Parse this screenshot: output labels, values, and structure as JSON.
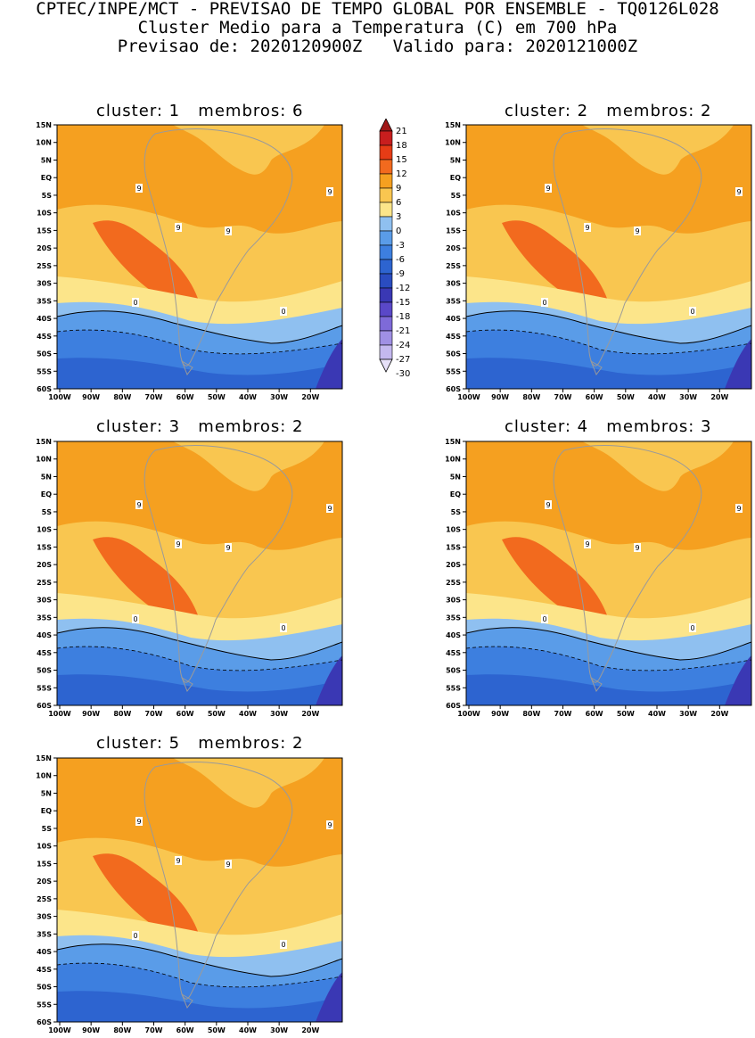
{
  "header": {
    "line1": "CPTEC/INPE/MCT - PREVISAO DE TEMPO GLOBAL POR ENSEMBLE - TQ0126L028",
    "line2": "Cluster Medio para a Temperatura (C) em 700 hPa",
    "line3": "Previsao de: 2020120900Z   Valido para: 2020121000Z"
  },
  "axes": {
    "lat_labels": [
      "15N",
      "10N",
      "5N",
      "EQ",
      "5S",
      "10S",
      "15S",
      "20S",
      "25S",
      "30S",
      "35S",
      "40S",
      "45S",
      "50S",
      "55S",
      "60S"
    ],
    "lon_labels": [
      "100W",
      "90W",
      "80W",
      "70W",
      "60W",
      "50W",
      "40W",
      "30W",
      "20W"
    ]
  },
  "colorbar": {
    "levels": [
      "21",
      "18",
      "15",
      "12",
      "9",
      "6",
      "3",
      "0",
      "-3",
      "-6",
      "-9",
      "-12",
      "-15",
      "-18",
      "-21",
      "-24",
      "-27",
      "-30"
    ],
    "colors": [
      "#a01818",
      "#c81e1e",
      "#e63c16",
      "#f26a1e",
      "#f5a020",
      "#f9c650",
      "#fce58a",
      "#8fc0f0",
      "#5a9ce8",
      "#3d7fdf",
      "#2d64d0",
      "#2a4cc0",
      "#3a38b4",
      "#5a48c8",
      "#7e6ad8",
      "#a090e4",
      "#c4b8ef",
      "#e6e0f8"
    ]
  },
  "panels": [
    {
      "title": "cluster: 1   membros: 6"
    },
    {
      "title": "cluster: 2   membros: 2"
    },
    {
      "title": "cluster: 3   membros: 2"
    },
    {
      "title": "cluster: 4   membros: 3"
    },
    {
      "title": "cluster: 5   membros: 2"
    }
  ],
  "contour_labels": {
    "warm": "9",
    "zero": "0"
  }
}
